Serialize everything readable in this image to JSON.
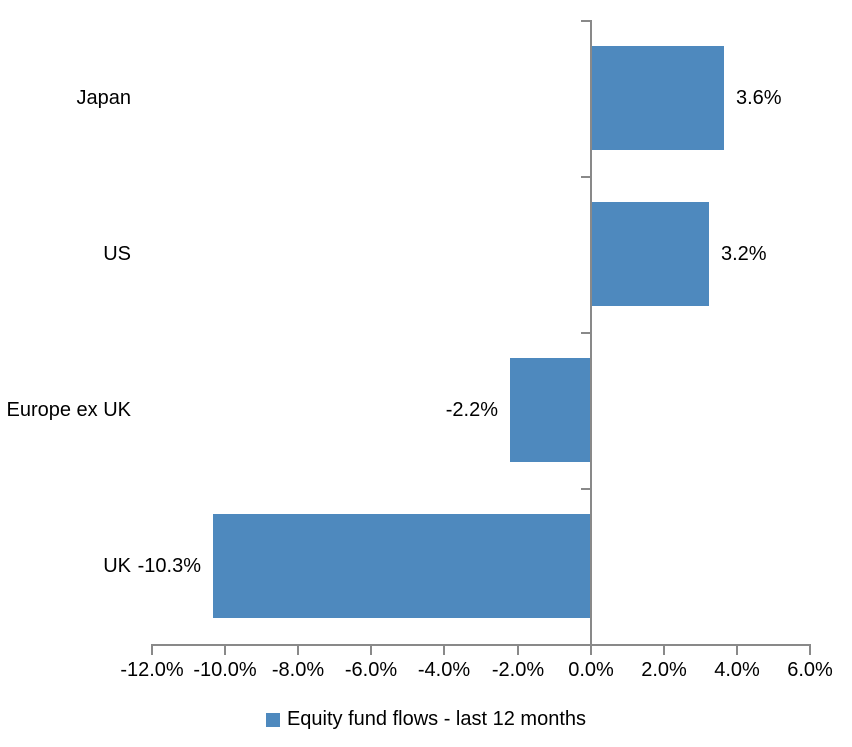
{
  "chart_data": {
    "type": "bar",
    "orientation": "horizontal",
    "title": "",
    "categories": [
      "Japan",
      "US",
      "Europe ex UK",
      "UK"
    ],
    "values": [
      3.6,
      3.2,
      -2.2,
      -10.3
    ],
    "data_labels": [
      "3.6%",
      "3.2%",
      "-2.2%",
      "-10.3%"
    ],
    "x_tick_values": [
      -12,
      -10,
      -8,
      -6,
      -4,
      -2,
      0,
      2,
      4,
      6
    ],
    "x_tick_labels": [
      "-12.0%",
      "-10.0%",
      "-8.0%",
      "-6.0%",
      "-4.0%",
      "-2.0%",
      "0.0%",
      "2.0%",
      "4.0%",
      "6.0%"
    ],
    "xlim": [
      -12,
      6
    ],
    "grid": false,
    "legend": "Equity fund flows - last 12 months",
    "legend_position": "bottom",
    "bar_color": "#4E89BE",
    "axis_color": "#898989",
    "text_color": "#000000"
  }
}
